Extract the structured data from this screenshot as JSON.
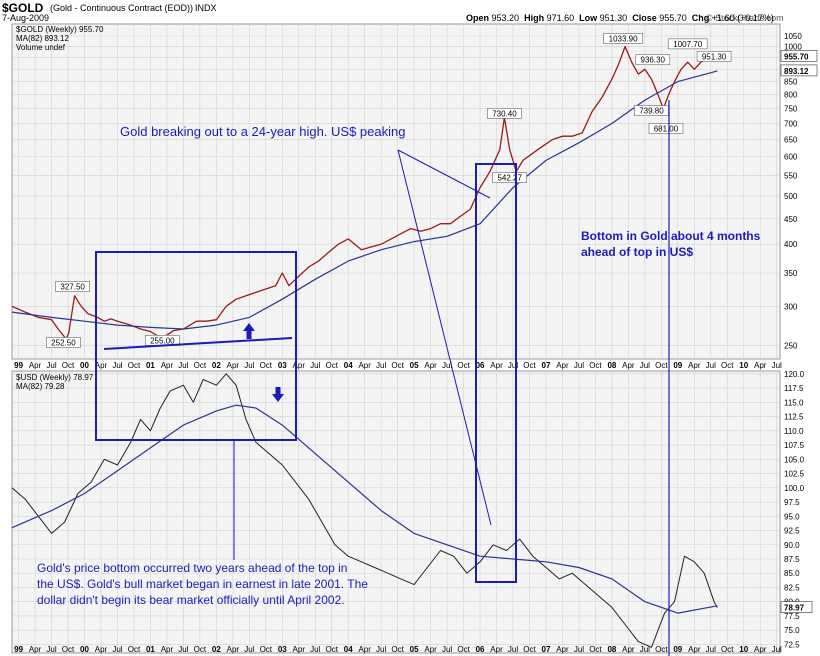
{
  "header": {
    "symbol": "$GOLD",
    "name": "(Gold - Continuous Contract (EOD))",
    "exchange": "INDX",
    "date": "7-Aug-2009",
    "open_label": "Open",
    "open": "953.20",
    "high_label": "High",
    "high": "971.60",
    "low_label": "Low",
    "low": "951.30",
    "close_label": "Close",
    "close": "955.70",
    "chg_label": "Chg",
    "chg": "+1.60 (+0.17%)",
    "watermark": "© StockCharts.com"
  },
  "colors": {
    "gold_series": "#9b1a1a",
    "usd_series": "#222222",
    "moving_average": "#283593",
    "annotation": "#1b1bbb",
    "panel_bg": "#f4f4f4",
    "grid": "#d2d2d2"
  },
  "chart_data": [
    {
      "type": "line",
      "panel": "top",
      "legend_symbol": "$GOLD (Weekly) 955.70",
      "legend_ma": "MA(82) 893.12",
      "legend_volume": "Volume undef",
      "y_scale": "log",
      "ylim": [
        235,
        1110
      ],
      "y_ticks": [
        "250",
        "300",
        "350",
        "400",
        "450",
        "500",
        "550",
        "600",
        "650",
        "700",
        "750",
        "800",
        "850",
        "900",
        "950",
        "1000",
        "1050"
      ],
      "x_ticks": [
        "Apr",
        "Jul",
        "Oct",
        "99",
        "Apr",
        "Jul",
        "Oct",
        "00",
        "Apr",
        "Jul",
        "Oct",
        "01",
        "Apr",
        "Jul",
        "Oct",
        "02",
        "Apr",
        "Jul",
        "Oct",
        "03",
        "Apr",
        "Jul",
        "Oct",
        "04",
        "Apr",
        "Jul",
        "Oct",
        "05",
        "Apr",
        "Jul",
        "Oct",
        "06",
        "Apr",
        "Jul",
        "Oct",
        "07",
        "Apr",
        "Jul",
        "Oct",
        "08",
        "Apr",
        "Jul",
        "Oct",
        "09",
        "Apr",
        "Jul",
        "Oct",
        "10",
        "Apr",
        "Jul"
      ],
      "series": [
        {
          "x": [
            1998.9,
            1999.1,
            1999.3,
            1999.5,
            1999.6,
            1999.72,
            1999.76,
            1999.85,
            1999.95,
            2000.05,
            2000.2,
            2000.3,
            2000.4,
            2000.5,
            2000.7,
            2000.85,
            2001.0,
            2001.1,
            2001.2,
            2001.35,
            2001.5,
            2001.7,
            2001.85,
            2002.0,
            2002.15,
            2002.3,
            2002.45,
            2002.6,
            2002.75,
            2002.9,
            2003.0,
            2003.1,
            2003.25,
            2003.4,
            2003.55,
            2003.7,
            2003.85,
            2004.0,
            2004.1,
            2004.2,
            2004.35,
            2004.5,
            2004.65,
            2004.8,
            2004.95,
            2005.1,
            2005.25,
            2005.4,
            2005.55,
            2005.7,
            2005.85,
            2006.0,
            2006.15,
            2006.3,
            2006.37,
            2006.45,
            2006.55,
            2006.65,
            2006.8,
            2006.95,
            2007.1,
            2007.25,
            2007.4,
            2007.55,
            2007.7,
            2007.85,
            2008.0,
            2008.1,
            2008.2,
            2008.3,
            2008.4,
            2008.5,
            2008.6,
            2008.7,
            2008.78,
            2008.86,
            2008.95,
            2009.05,
            2009.15,
            2009.25,
            2009.35,
            2009.45,
            2009.55,
            2009.6
          ],
          "values": [
            300,
            292,
            285,
            282,
            270,
            258,
            265,
            315,
            300,
            290,
            285,
            280,
            283,
            280,
            275,
            270,
            267,
            262,
            260,
            268,
            270,
            280,
            280,
            282,
            300,
            310,
            315,
            320,
            325,
            330,
            350,
            330,
            345,
            360,
            370,
            385,
            400,
            410,
            400,
            390,
            395,
            400,
            410,
            420,
            430,
            425,
            430,
            440,
            440,
            455,
            470,
            520,
            560,
            620,
            720,
            620,
            560,
            590,
            610,
            630,
            650,
            660,
            660,
            670,
            740,
            790,
            860,
            920,
            1000,
            930,
            880,
            900,
            860,
            800,
            750,
            800,
            850,
            900,
            930,
            900,
            930,
            950,
            960,
            955.7
          ]
        },
        {
          "x": [
            1998.9,
            1999.5,
            2000.0,
            2000.5,
            2001.0,
            2001.5,
            2002.0,
            2002.5,
            2003.0,
            2003.5,
            2004.0,
            2004.5,
            2005.0,
            2005.5,
            2006.0,
            2006.5,
            2007.0,
            2007.5,
            2008.0,
            2008.5,
            2009.0,
            2009.6
          ],
          "values": [
            292,
            285,
            280,
            275,
            272,
            270,
            275,
            285,
            310,
            340,
            370,
            390,
            405,
            415,
            440,
            520,
            590,
            640,
            700,
            780,
            850,
            893
          ]
        }
      ],
      "annotations": [
        {
          "text": "327.50",
          "x": 1999.82,
          "y": 327.5
        },
        {
          "text": "252.50",
          "x": 1999.68,
          "y": 252.5
        },
        {
          "text": "255.00",
          "x": 2001.18,
          "y": 255
        },
        {
          "text": "730.40",
          "x": 2006.37,
          "y": 730.4
        },
        {
          "text": "542.27",
          "x": 2006.45,
          "y": 542.27
        },
        {
          "text": "1033.90",
          "x": 2008.17,
          "y": 1033.9
        },
        {
          "text": "936.30",
          "x": 2008.62,
          "y": 936.3
        },
        {
          "text": "739.80",
          "x": 2008.6,
          "y": 739.8
        },
        {
          "text": "681.00",
          "x": 2008.82,
          "y": 681
        },
        {
          "text": "1007.70",
          "x": 2009.15,
          "y": 1007.7
        },
        {
          "text": "951.30",
          "x": 2009.55,
          "y": 951.3
        }
      ],
      "last_value_labels": [
        {
          "text": "955.70",
          "y": 955.7
        },
        {
          "text": "893.12",
          "y": 893.12
        }
      ]
    },
    {
      "type": "line",
      "panel": "bottom",
      "legend_symbol": "$USD (Weekly) 78.97",
      "legend_ma": "MA(82) 79.28",
      "ylim": [
        71,
        120.5
      ],
      "y_ticks": [
        "72.5",
        "75.0",
        "77.5",
        "80.0",
        "82.5",
        "85.0",
        "87.5",
        "90.0",
        "92.5",
        "95.0",
        "97.5",
        "100.0",
        "102.5",
        "105.0",
        "107.5",
        "110.0",
        "112.5",
        "115.0",
        "117.5",
        "120.0"
      ],
      "series": [
        {
          "x": [
            1998.9,
            1999.1,
            1999.3,
            1999.5,
            1999.7,
            1999.9,
            2000.1,
            2000.3,
            2000.5,
            2000.7,
            2000.85,
            2001.0,
            2001.15,
            2001.3,
            2001.5,
            2001.65,
            2001.8,
            2002.0,
            2002.15,
            2002.3,
            2002.45,
            2002.6,
            2002.8,
            2003.0,
            2003.2,
            2003.4,
            2003.6,
            2003.8,
            2004.0,
            2004.2,
            2004.4,
            2004.6,
            2004.8,
            2005.0,
            2005.2,
            2005.4,
            2005.6,
            2005.8,
            2006.0,
            2006.2,
            2006.4,
            2006.6,
            2006.8,
            2007.0,
            2007.2,
            2007.4,
            2007.6,
            2007.8,
            2008.0,
            2008.2,
            2008.4,
            2008.6,
            2008.7,
            2008.8,
            2008.95,
            2009.1,
            2009.25,
            2009.4,
            2009.55,
            2009.6
          ],
          "values": [
            100,
            98,
            95,
            92,
            94,
            99,
            101,
            105,
            104,
            108,
            112,
            110,
            114,
            117,
            118,
            115,
            119,
            118,
            120,
            118,
            112,
            108,
            106,
            104,
            101,
            98,
            94,
            90,
            88,
            87,
            86,
            85,
            84,
            83,
            86,
            89,
            88,
            85,
            87,
            90,
            89,
            91,
            88,
            86,
            84,
            85,
            83,
            81,
            79,
            76,
            73,
            72,
            75,
            78,
            80,
            88,
            87,
            85,
            80,
            78.97
          ]
        },
        {
          "x": [
            1998.9,
            1999.5,
            2000.0,
            2000.5,
            2001.0,
            2001.5,
            2002.0,
            2002.3,
            2002.6,
            2003.0,
            2003.5,
            2004.0,
            2004.5,
            2005.0,
            2005.5,
            2006.0,
            2006.5,
            2007.0,
            2007.5,
            2008.0,
            2008.5,
            2009.0,
            2009.6
          ],
          "values": [
            93,
            96,
            99,
            103,
            107,
            111,
            113.5,
            114.5,
            114,
            111,
            106,
            101,
            96,
            92,
            90,
            88,
            87.5,
            87,
            86,
            84,
            80,
            78,
            79.28
          ]
        }
      ],
      "last_value_labels": [
        {
          "text": "78.97",
          "y": 78.97
        }
      ]
    }
  ],
  "annotations_text": {
    "gold_breakout": "Gold breaking out to a 24-year high. US$ peaking",
    "bottom_in_gold_line1": "Bottom in Gold about 4 months",
    "bottom_in_gold_line2": "ahead of top in US$",
    "note_line1": "Gold's price bottom occurred two years ahead of the top in",
    "note_line2": "the US$. Gold's bull market began in earnest in late 2001. The",
    "note_line3": "dollar didn't begin its bear market officially until April 2002."
  }
}
